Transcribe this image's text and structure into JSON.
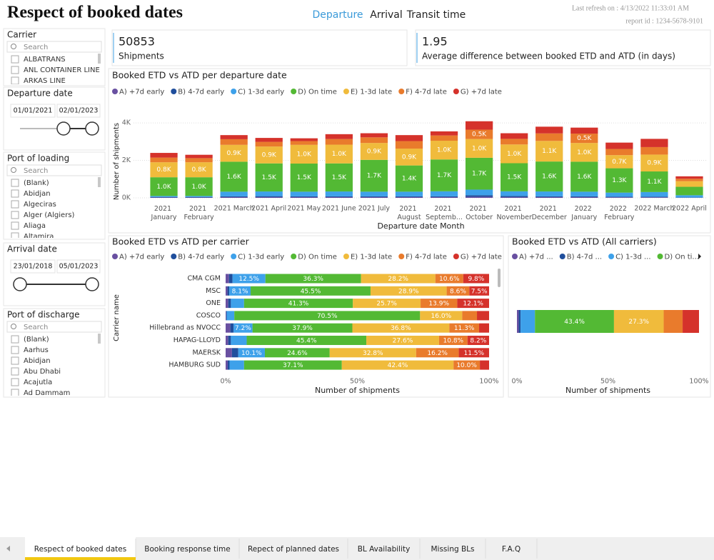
{
  "header": {
    "title": "Respect of booked dates",
    "nav": [
      "Departure",
      "Arrival",
      "Transit time"
    ],
    "active_nav": 0,
    "last_refresh": "Last refresh on : 4/13/2022 11:33:01 AM",
    "report_id": "report id : 1234-5678-9101"
  },
  "slicers": [
    {
      "title": "Carrier",
      "search": "Search",
      "items": [
        "ALBATRANS",
        "ANL CONTAINER LINE",
        "ARKAS LINE"
      ]
    },
    {
      "title": "Departure date",
      "from": "01/01/2021",
      "to": "02/01/2023"
    },
    {
      "title": "Port of loading",
      "search": "Search",
      "items": [
        "(Blank)",
        "Abidjan",
        "Algeciras",
        "Alger (Algiers)",
        "Aliaga",
        "Altamira"
      ]
    },
    {
      "title": "Arrival date",
      "from": "23/01/2018",
      "to": "05/01/2023"
    },
    {
      "title": "Port of discharge",
      "search": "Search",
      "items": [
        "(Blank)",
        "Aarhus",
        "Abidjan",
        "Abu Dhabi",
        "Acajutla",
        "Ad Dammam"
      ]
    }
  ],
  "cards": [
    {
      "value": 50853,
      "label": "Shipments"
    },
    {
      "value": 1.95,
      "label": "Average difference between booked ETD and ATD (in days)"
    }
  ],
  "charts": [
    {
      "type": "stacked-column",
      "title": "Booked ETD vs ATD per departure date",
      "x_label": "Departure date Month",
      "y_label": "Number of shipments",
      "categories": [
        "2021 January",
        "2021 February",
        "2021 March",
        "2021 April",
        "2021 May",
        "2021 June",
        "2021 July",
        "2021 August",
        "2021 Septemb...",
        "2021 October",
        "2021 November",
        "2021 December",
        "2022 January",
        "2022 February",
        "2022 March",
        "2022 April"
      ],
      "ylim": [
        0,
        4500
      ],
      "yticks": [
        {
          "value": 0,
          "label": "0K"
        },
        {
          "value": 2000,
          "label": "2K"
        },
        {
          "value": 4000,
          "label": "4K"
        }
      ],
      "grid": true,
      "series": [
        {
          "name": "A) +7d early",
          "color": "#6950a1",
          "values": [
            20,
            20,
            40,
            40,
            40,
            40,
            40,
            40,
            40,
            60,
            40,
            40,
            40,
            30,
            30,
            10
          ]
        },
        {
          "name": "B) 4-7d early",
          "color": "#1f4e9c",
          "values": [
            20,
            20,
            40,
            50,
            40,
            40,
            40,
            40,
            40,
            80,
            60,
            40,
            40,
            30,
            30,
            10
          ]
        },
        {
          "name": "C) 1-3d early",
          "color": "#3ea1ea",
          "values": [
            60,
            60,
            250,
            250,
            250,
            260,
            250,
            250,
            270,
            300,
            250,
            260,
            250,
            220,
            250,
            120
          ]
        },
        {
          "name": "D) On time",
          "color": "#53b934",
          "values": [
            1000,
            1000,
            1600,
            1500,
            1500,
            1500,
            1700,
            1400,
            1700,
            1700,
            1500,
            1600,
            1600,
            1300,
            1100,
            450
          ],
          "value_labels": [
            "1.0K",
            "1.0K",
            "1.6K",
            "1.5K",
            "1.5K",
            "1.5K",
            "1.7K",
            "1.4K",
            "1.7K",
            "1.7K",
            "1.5K",
            "1.6K",
            "1.6K",
            "1.3K",
            "1.1K",
            null
          ]
        },
        {
          "name": "E) 1-3d late",
          "color": "#f0bb3c",
          "values": [
            800,
            800,
            900,
            900,
            1000,
            1000,
            900,
            900,
            1000,
            1000,
            1000,
            1100,
            1000,
            700,
            900,
            300
          ],
          "value_labels": [
            "0.8K",
            "0.8K",
            "0.9K",
            "0.9K",
            "1.0K",
            "1.0K",
            "0.9K",
            "0.9K",
            "1.0K",
            "1.0K",
            "1.0K",
            "1.1K",
            "1.0K",
            "0.7K",
            "0.9K",
            null
          ]
        },
        {
          "name": "F) 4-7d late",
          "color": "#e97b2c",
          "values": [
            250,
            220,
            300,
            250,
            200,
            300,
            300,
            400,
            280,
            500,
            300,
            400,
            500,
            330,
            400,
            130
          ],
          "value_labels": [
            null,
            null,
            null,
            null,
            null,
            null,
            null,
            null,
            null,
            "0.5K",
            null,
            null,
            "0.5K",
            null,
            null,
            null
          ]
        },
        {
          "name": "G) +7d late",
          "color": "#d5322b",
          "values": [
            250,
            180,
            220,
            210,
            150,
            260,
            220,
            320,
            220,
            450,
            300,
            360,
            320,
            340,
            440,
            130
          ]
        }
      ]
    },
    {
      "type": "stacked-bar-100",
      "title": "Booked ETD vs ATD per carrier",
      "x_label": "Number of shipments",
      "y_label": "Carrier name",
      "categories": [
        "CMA CGM",
        "MSC",
        "ONE",
        "COSCO",
        "Hillebrand as NVOCC",
        "HAPAG-LLOYD",
        "MAERSK",
        "HAMBURG SUD"
      ],
      "xlim": [
        0,
        100
      ],
      "xticks": [
        {
          "value": 0,
          "label": "0%"
        },
        {
          "value": 50,
          "label": "50%"
        },
        {
          "value": 100,
          "label": "100%"
        }
      ],
      "series": [
        {
          "name": "A) +7d early",
          "color": "#6950a1",
          "values": [
            1.3,
            0.7,
            1.0,
            0.2,
            1.8,
            1.0,
            2.4,
            0.8
          ]
        },
        {
          "name": "B) 4-7d early",
          "color": "#1f4e9c",
          "values": [
            1.3,
            0.7,
            1.0,
            0.2,
            1.2,
            1.0,
            2.4,
            0.7
          ]
        },
        {
          "name": "C) 1-3d early",
          "color": "#3ea1ea",
          "values": [
            12.5,
            8.1,
            5.0,
            2.9,
            7.2,
            6.0,
            10.1,
            5.5
          ],
          "value_labels": [
            "12.5%",
            "8.1%",
            null,
            null,
            "7.2%",
            null,
            "10.1%",
            null
          ]
        },
        {
          "name": "D) On time",
          "color": "#53b934",
          "values": [
            36.3,
            45.5,
            41.3,
            70.5,
            37.9,
            45.4,
            24.6,
            37.1
          ],
          "value_labels": [
            "36.3%",
            "45.5%",
            "41.3%",
            "70.5%",
            "37.9%",
            "45.4%",
            "24.6%",
            "37.1%"
          ]
        },
        {
          "name": "E) 1-3d late",
          "color": "#f0bb3c",
          "values": [
            28.2,
            28.9,
            25.7,
            16.0,
            36.8,
            27.6,
            32.8,
            42.4
          ],
          "value_labels": [
            "28.2%",
            "28.9%",
            "25.7%",
            "16.0%",
            "36.8%",
            "27.6%",
            "32.8%",
            "42.4%"
          ]
        },
        {
          "name": "F) 4-7d late",
          "color": "#e97b2c",
          "values": [
            10.6,
            8.6,
            13.9,
            5.6,
            11.3,
            10.8,
            16.2,
            10.0
          ],
          "value_labels": [
            "10.6%",
            "8.6%",
            "13.9%",
            null,
            "11.3%",
            "10.8%",
            "16.2%",
            "10.0%"
          ]
        },
        {
          "name": "G) +7d late",
          "color": "#d5322b",
          "values": [
            9.8,
            7.5,
            12.1,
            4.6,
            3.8,
            8.2,
            11.5,
            3.5
          ],
          "value_labels": [
            "9.8%",
            "7.5%",
            "12.1%",
            null,
            null,
            "8.2%",
            "11.5%",
            null
          ]
        }
      ]
    },
    {
      "type": "stacked-bar-100",
      "title": "Booked ETD vs ATD (All carriers)",
      "x_label": "Number of shipments",
      "legend": [
        "A) +7d ...",
        "B) 4-7d ...",
        "C) 1-3d ...",
        "D) On ti..."
      ],
      "xlim": [
        0,
        100
      ],
      "xticks": [
        {
          "value": 0,
          "label": "0%"
        },
        {
          "value": 50,
          "label": "50%"
        },
        {
          "value": 100,
          "label": "100%"
        }
      ],
      "series": [
        {
          "color": "#6950a1",
          "values": [
            1.0
          ]
        },
        {
          "color": "#1f4e9c",
          "values": [
            1.0
          ]
        },
        {
          "color": "#3ea1ea",
          "values": [
            7.9
          ]
        },
        {
          "color": "#53b934",
          "values": [
            43.4
          ],
          "value_labels": [
            "43.4%"
          ]
        },
        {
          "color": "#f0bb3c",
          "values": [
            27.3
          ],
          "value_labels": [
            "27.3%"
          ]
        },
        {
          "color": "#e97b2c",
          "values": [
            10.4
          ]
        },
        {
          "color": "#d5322b",
          "values": [
            9.0
          ]
        }
      ]
    }
  ],
  "tabs": {
    "items": [
      "Respect of booked dates",
      "Booking response time",
      "Repect of planned dates",
      "BL Availability",
      "Missing BLs",
      "F.A.Q"
    ],
    "active": 0
  }
}
